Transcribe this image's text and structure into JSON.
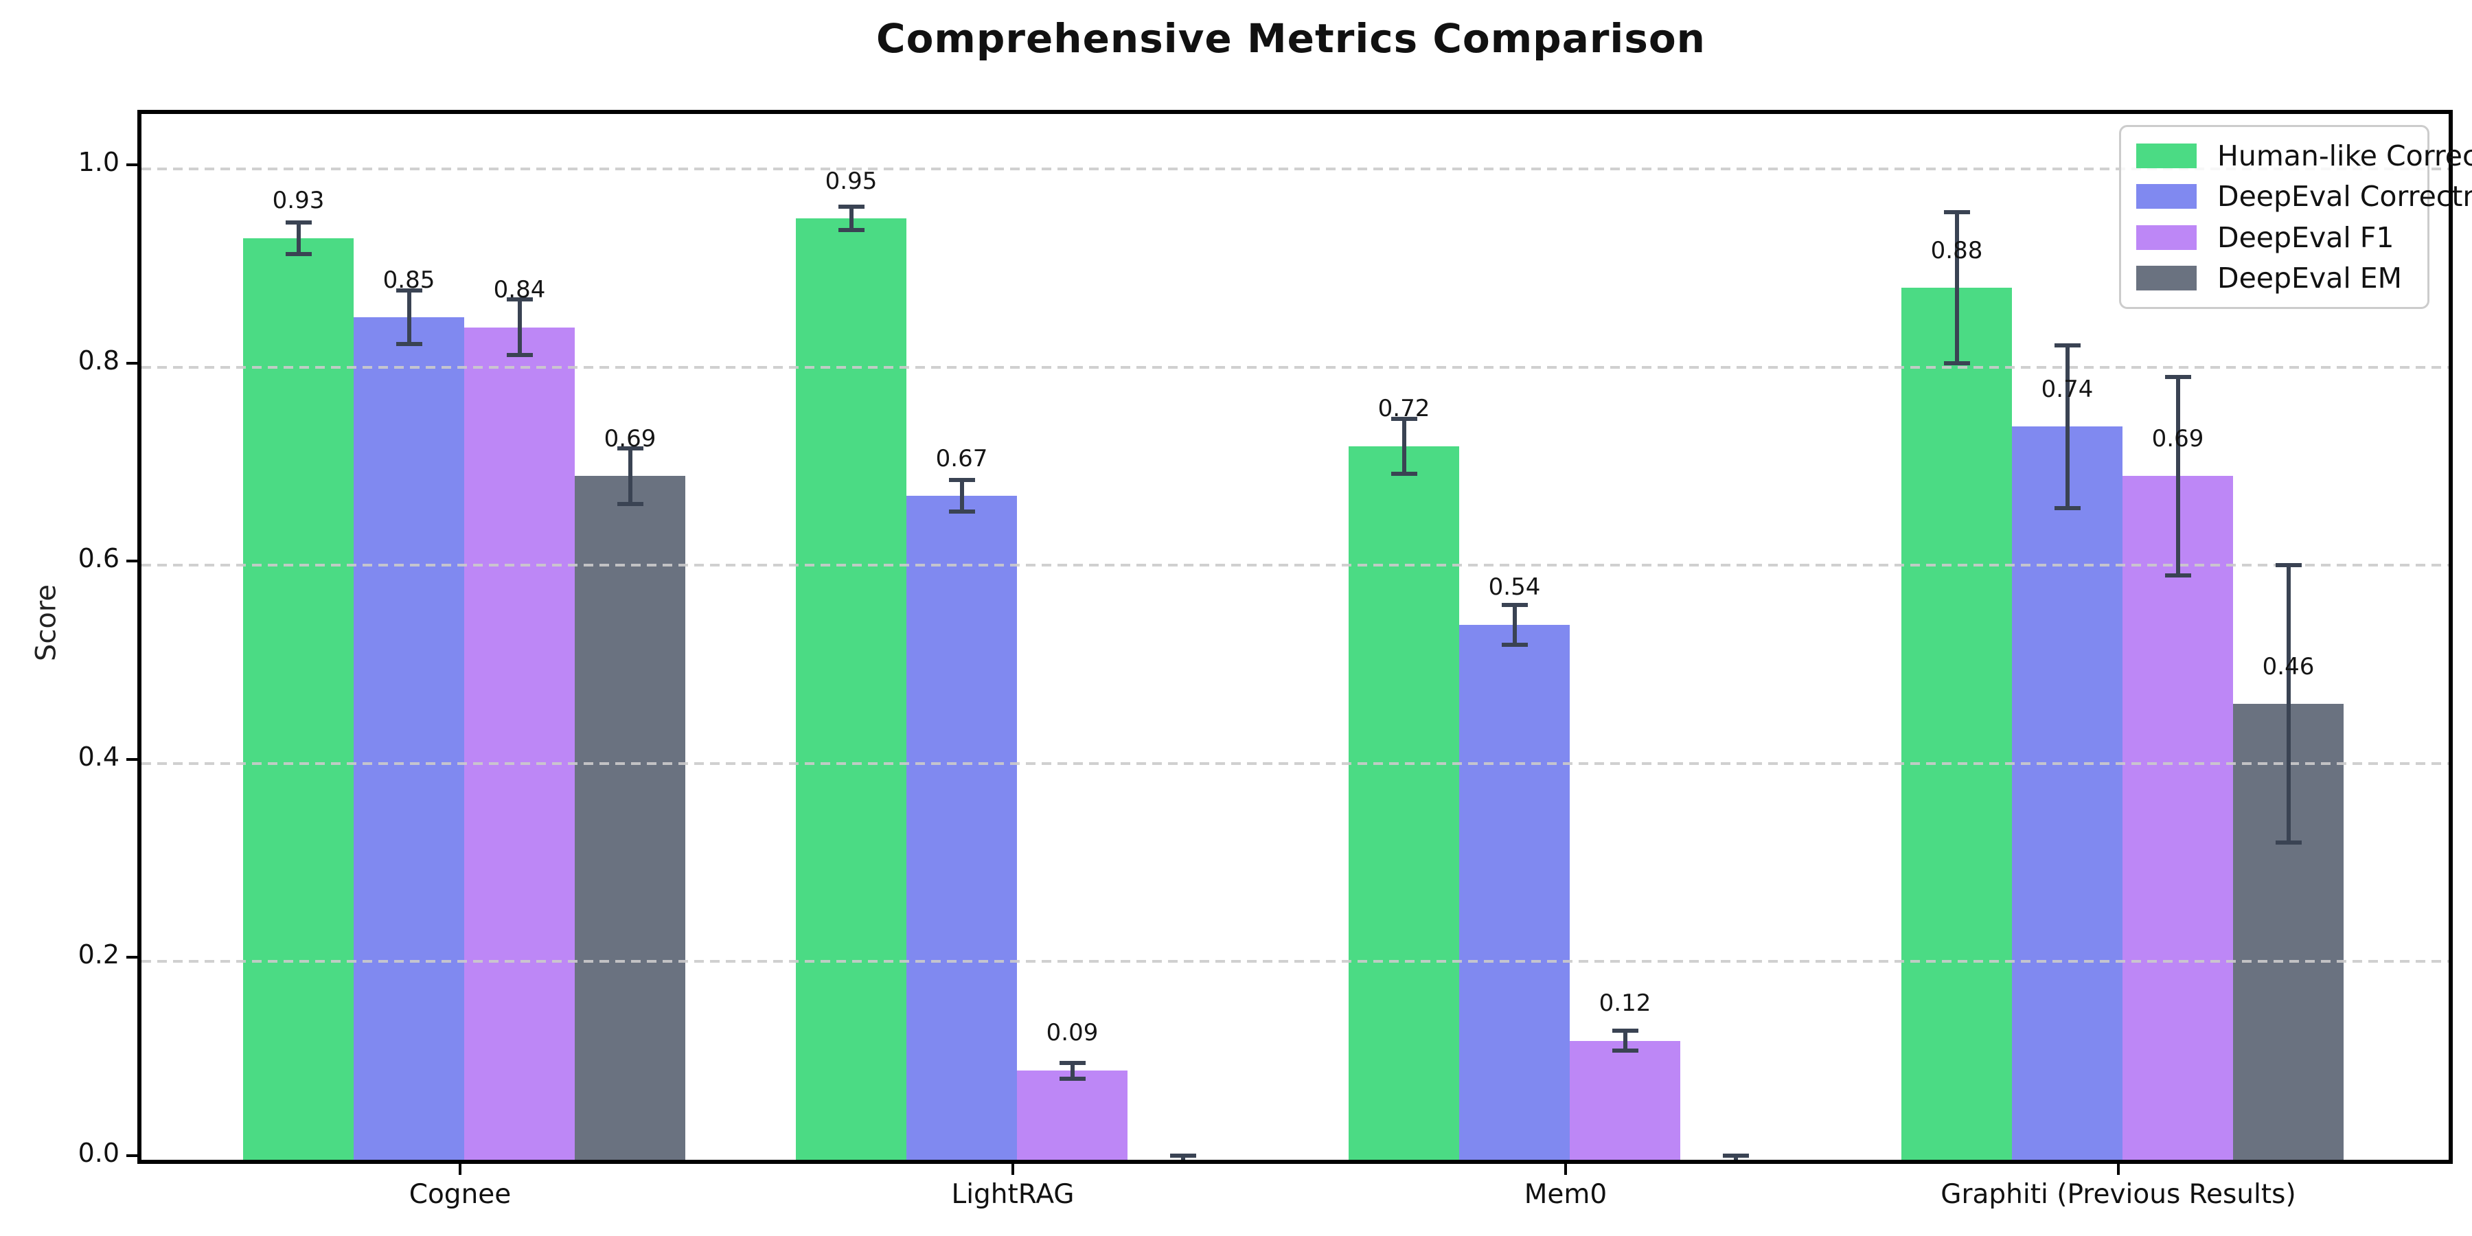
{
  "page_title": "Comprehensive Metrics Comparison",
  "chart_data": {
    "type": "bar",
    "title": "Comprehensive Metrics Comparison",
    "ylabel": "Score",
    "xlabel": "",
    "categories": [
      "Cognee",
      "LightRAG",
      "Mem0",
      "Graphiti (Previous Results)"
    ],
    "series": [
      {
        "name": "Human-like Correctness",
        "color": "#4bdb84",
        "values": [
          0.93,
          0.95,
          0.72,
          0.88
        ],
        "errors": [
          0.016,
          0.012,
          0.028,
          0.076
        ],
        "labels": [
          "0.93",
          "0.95",
          "0.72",
          "0.88"
        ]
      },
      {
        "name": "DeepEval Correctness",
        "color": "#8089f0",
        "values": [
          0.85,
          0.67,
          0.54,
          0.74
        ],
        "errors": [
          0.027,
          0.016,
          0.02,
          0.082
        ],
        "labels": [
          "0.85",
          "0.67",
          "0.54",
          "0.74"
        ]
      },
      {
        "name": "DeepEval F1",
        "color": "#bd87f6",
        "values": [
          0.84,
          0.09,
          0.12,
          0.69
        ],
        "errors": [
          0.028,
          0.008,
          0.01,
          0.1
        ],
        "labels": [
          "0.84",
          "0.09",
          "0.12",
          "0.69"
        ]
      },
      {
        "name": "DeepEval EM",
        "color": "#6a7280",
        "values": [
          0.69,
          0.0,
          0.0,
          0.46
        ],
        "errors": [
          0.028,
          0.004,
          0.004,
          0.14
        ],
        "labels": [
          "0.69",
          "",
          "",
          "0.46"
        ]
      }
    ],
    "yticks": [
      0.0,
      0.2,
      0.4,
      0.6,
      0.8,
      1.0
    ],
    "ytick_labels": [
      "0.0",
      "0.2",
      "0.4",
      "0.6",
      "0.8",
      "1.0"
    ],
    "ylim": [
      0.0,
      1.055
    ],
    "grid": "horizontal dashed, drawn over bars",
    "legend_position": "upper right",
    "bar_group_width_units": 0.8,
    "error_bar_color": "#3a4353",
    "background_color": "#ffffff"
  }
}
